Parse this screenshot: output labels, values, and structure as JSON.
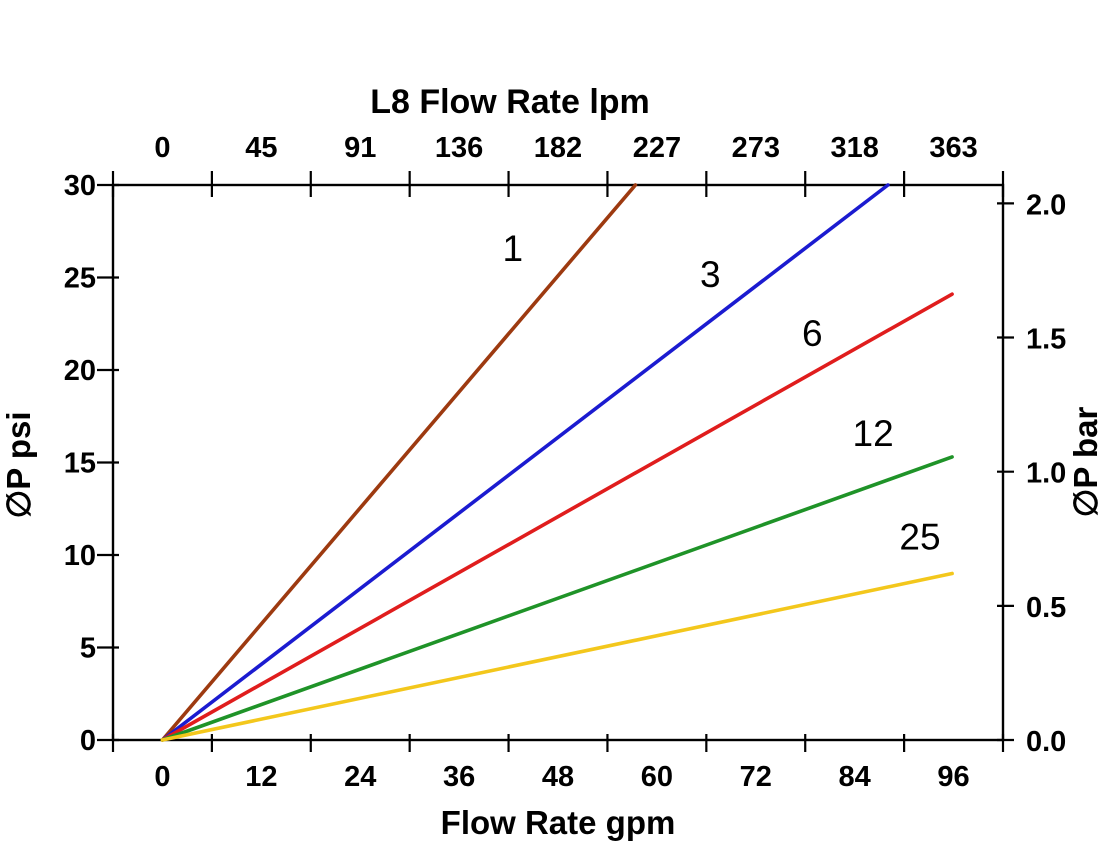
{
  "page": {
    "background": "#ffffff",
    "axis_color": "#000000",
    "text_color": "#000000"
  },
  "chart_data": {
    "type": "line",
    "title": "L8 Flow Rate lpm",
    "xlabel_top": "L8 Flow Rate lpm",
    "xlabel_bottom": "Flow Rate gpm",
    "ylabel_left": "∅P psi",
    "ylabel_right": "∅P bar",
    "x_axis_bottom": {
      "unit": "gpm",
      "ticks": [
        0,
        12,
        24,
        36,
        48,
        60,
        72,
        84,
        96
      ],
      "range": [
        0,
        96
      ]
    },
    "x_axis_top": {
      "unit": "lpm",
      "ticks": [
        0,
        45,
        91,
        136,
        182,
        227,
        273,
        318,
        363
      ],
      "range": [
        0,
        363
      ]
    },
    "y_axis_left": {
      "unit": "psi",
      "ticks": [
        0,
        5,
        10,
        15,
        20,
        25,
        30
      ],
      "range": [
        0,
        30
      ]
    },
    "y_axis_right": {
      "unit": "bar",
      "ticks": [
        "0.0",
        "0.5",
        "1.0",
        "1.5",
        "2.0"
      ],
      "range": [
        0,
        2.07
      ]
    },
    "legend_position": "inline-labels",
    "grid": false,
    "series": [
      {
        "name": "1",
        "label": "1",
        "color": "#9d3a10",
        "points_gpm_psi": [
          [
            0,
            0
          ],
          [
            57.5,
            30
          ]
        ],
        "label_at_gpm_psi": [
          42.6,
          26.6
        ]
      },
      {
        "name": "3",
        "label": "3",
        "color": "#1b1bd0",
        "points_gpm_psi": [
          [
            0,
            0
          ],
          [
            88.2,
            30
          ]
        ],
        "label_at_gpm_psi": [
          66.6,
          25.2
        ]
      },
      {
        "name": "6",
        "label": "6",
        "color": "#e01d1d",
        "points_gpm_psi": [
          [
            0,
            0
          ],
          [
            96,
            24.1
          ]
        ],
        "label_at_gpm_psi": [
          79.0,
          22.0
        ]
      },
      {
        "name": "12",
        "label": "12",
        "color": "#1f9328",
        "points_gpm_psi": [
          [
            0,
            0
          ],
          [
            96,
            15.3
          ]
        ],
        "label_at_gpm_psi": [
          86.4,
          16.6
        ]
      },
      {
        "name": "25",
        "label": "25",
        "color": "#f3c71c",
        "points_gpm_psi": [
          [
            0,
            0
          ],
          [
            96,
            9.0
          ]
        ],
        "label_at_gpm_psi": [
          92.1,
          11.0
        ]
      }
    ]
  }
}
